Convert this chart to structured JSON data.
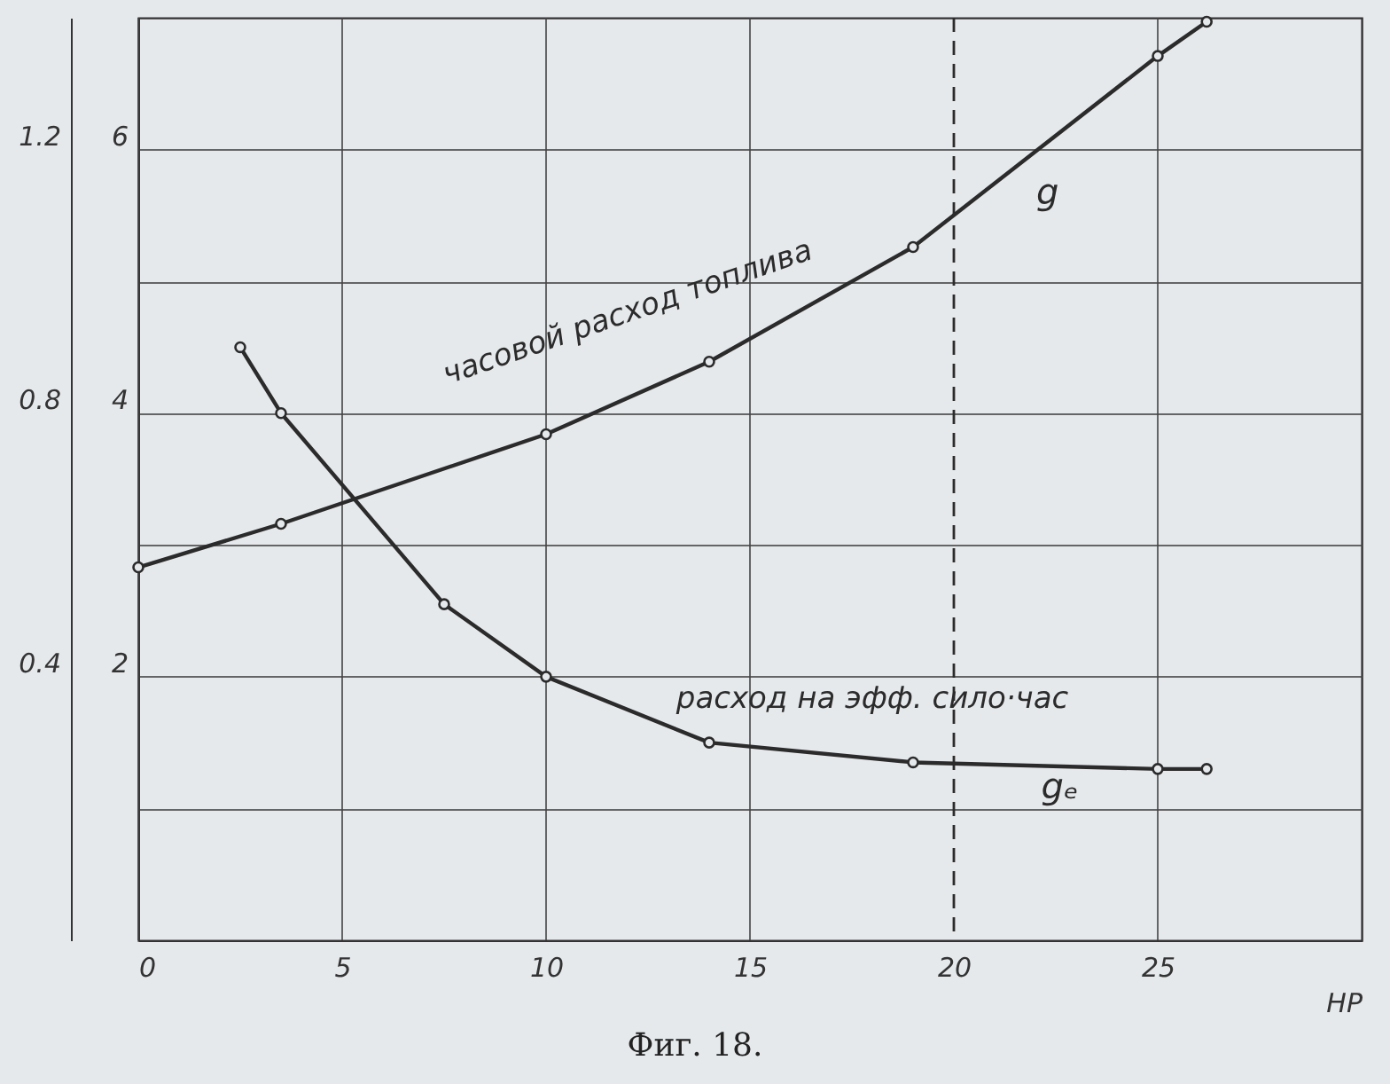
{
  "chart_data": {
    "type": "line",
    "xlabel": "HP",
    "xlim": [
      0,
      30
    ],
    "xticks": [
      0,
      5,
      10,
      15,
      20,
      25
    ],
    "ylim": [
      0,
      7
    ],
    "yticks": [
      {
        "value": 1,
        "label": null
      },
      2,
      {
        "value": 3,
        "label": null
      },
      4,
      {
        "value": 5,
        "label": null
      },
      6
    ],
    "y2lim": [
      0,
      1.4
    ],
    "y2ticks": [
      0.4,
      0.8,
      1.2
    ],
    "grid": true,
    "marker": "circle",
    "line_style": "solid",
    "series": [
      {
        "name": "g",
        "color": "#2b2b2b",
        "x": [
          0,
          3.5,
          10,
          14,
          19,
          25,
          26.2
        ],
        "values": [
          2.83,
          3.16,
          3.84,
          4.39,
          5.26,
          6.71,
          6.97
        ]
      },
      {
        "name": "gₑ",
        "color": "#2b2b2b",
        "axis": "y2",
        "x": [
          2.5,
          3.5,
          7.5,
          10,
          14,
          19,
          25,
          26.2
        ],
        "values": [
          0.9,
          0.8,
          0.51,
          0.4,
          0.3,
          0.27,
          0.26,
          0.26
        ]
      }
    ],
    "ref_lines": [
      {
        "axis": "x",
        "value": 20,
        "line_style": "dashed",
        "color": "#2b2b2b"
      }
    ],
    "annotations": [
      "часовой расход топлива",
      "расход на эфф. сило·час",
      "Фиг. 18."
    ]
  }
}
